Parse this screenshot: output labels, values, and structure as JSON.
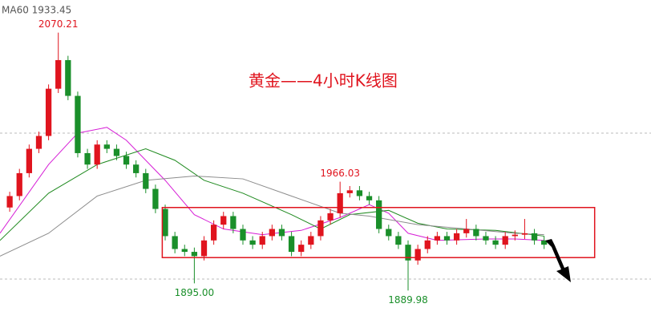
{
  "chart_data": {
    "type": "candlestick",
    "title": "黄金——4小时K线图",
    "indicator_text": "MA60 1933.45",
    "xlim": [
      -1,
      66
    ],
    "ylim": [
      1861,
      2093
    ],
    "up_color": "#e0141e",
    "down_color": "#1a8f2a",
    "grid_levels": [
      2000,
      1898
    ],
    "opens": [
      1948,
      1956,
      1972,
      1989,
      1998,
      2031,
      2051,
      2026,
      1986,
      1978,
      1992,
      1989,
      1984,
      1978,
      1972,
      1961,
      1947,
      1928,
      1919,
      1917,
      1914,
      1925,
      1936,
      1942,
      1933,
      1925,
      1922,
      1928,
      1933,
      1928,
      1917,
      1922,
      1928,
      1939,
      1944,
      1958,
      1960,
      1956,
      1953,
      1933,
      1928,
      1922,
      1911,
      1919,
      1925,
      1928,
      1925,
      1930,
      1933,
      1928,
      1925,
      1922,
      1928,
      1929,
      1930,
      1925
    ],
    "closes": [
      1956,
      1972,
      1989,
      1998,
      2031,
      2051,
      2026,
      1986,
      1978,
      1992,
      1989,
      1984,
      1978,
      1972,
      1961,
      1947,
      1928,
      1919,
      1917,
      1914,
      1925,
      1936,
      1942,
      1933,
      1925,
      1922,
      1928,
      1933,
      1928,
      1917,
      1922,
      1928,
      1939,
      1944,
      1958,
      1960,
      1956,
      1953,
      1933,
      1928,
      1922,
      1911,
      1919,
      1925,
      1928,
      1925,
      1930,
      1933,
      1928,
      1925,
      1922,
      1928,
      1929,
      1930,
      1925,
      1922
    ],
    "highs": [
      1959,
      1975,
      1992,
      2001,
      2034,
      2070.21,
      2054,
      2029,
      1989,
      1995,
      1995,
      1992,
      1987,
      1981,
      1975,
      1964,
      1950,
      1931,
      1922,
      1920,
      1928,
      1939,
      1945,
      1945,
      1936,
      1928,
      1931,
      1936,
      1936,
      1931,
      1925,
      1931,
      1942,
      1947,
      1966.03,
      1963,
      1963,
      1959,
      1956,
      1936,
      1931,
      1925,
      1922,
      1928,
      1931,
      1931,
      1933,
      1940,
      1936,
      1931,
      1928,
      1931,
      1932,
      1940,
      1933,
      1928
    ],
    "lows": [
      1945,
      1953,
      1969,
      1986,
      1995,
      2028,
      2023,
      1983,
      1975,
      1975,
      1986,
      1981,
      1975,
      1969,
      1958,
      1944,
      1925,
      1916,
      1914,
      1895,
      1911,
      1922,
      1933,
      1930,
      1922,
      1919,
      1919,
      1925,
      1925,
      1914,
      1914,
      1919,
      1925,
      1936,
      1941,
      1955,
      1953,
      1950,
      1930,
      1925,
      1919,
      1889.98,
      1908,
      1916,
      1922,
      1922,
      1922,
      1927,
      1925,
      1922,
      1919,
      1919,
      1925,
      1926,
      1922,
      1919
    ],
    "high_value_labels": [
      null,
      null,
      null,
      null,
      null,
      "2070.21",
      null,
      null,
      null,
      null,
      null,
      null,
      null,
      null,
      null,
      null,
      null,
      null,
      null,
      null,
      null,
      null,
      null,
      null,
      null,
      null,
      null,
      null,
      null,
      null,
      null,
      null,
      null,
      null,
      "1966.03",
      null,
      null,
      null,
      null,
      null,
      null,
      null,
      null,
      null,
      null,
      null,
      null,
      null,
      null,
      null,
      null,
      null,
      null,
      null,
      null,
      null
    ],
    "low_value_labels": [
      null,
      null,
      null,
      null,
      null,
      null,
      null,
      null,
      null,
      null,
      null,
      null,
      null,
      null,
      null,
      null,
      null,
      null,
      null,
      "1895.00",
      null,
      null,
      null,
      null,
      null,
      null,
      null,
      null,
      null,
      null,
      null,
      null,
      null,
      null,
      null,
      null,
      null,
      null,
      null,
      null,
      null,
      "1889.98",
      null,
      null,
      null,
      null,
      null,
      null,
      null,
      null,
      null,
      null,
      null,
      null,
      null,
      null
    ],
    "lines": [
      {
        "color": "#d61ed6",
        "x": [
          -1,
          4,
          7,
          10,
          12,
          16,
          19,
          22,
          26,
          30,
          34,
          37,
          39,
          41,
          44,
          49,
          52,
          55
        ],
        "values": [
          1930,
          1978,
          2000,
          2004,
          1995,
          1967,
          1943,
          1933,
          1929,
          1932,
          1941,
          1950,
          1944,
          1930,
          1925,
          1926,
          1926,
          1925
        ]
      },
      {
        "color": "#1f8a1f",
        "x": [
          -1,
          4,
          9,
          14,
          17,
          20,
          24,
          29,
          32,
          35,
          39,
          42,
          45,
          50,
          55
        ],
        "values": [
          1925,
          1958,
          1978,
          1989,
          1981,
          1967,
          1958,
          1943,
          1933,
          1943,
          1946,
          1937,
          1933,
          1932,
          1928
        ]
      },
      {
        "color": "#8c8c8c",
        "x": [
          -1,
          4,
          9,
          14,
          19,
          24,
          29,
          34,
          37,
          42,
          47,
          52,
          55
        ],
        "values": [
          1914,
          1930,
          1956,
          1967,
          1970,
          1968,
          1956,
          1944,
          1942,
          1936,
          1933,
          1930,
          1929
        ]
      }
    ],
    "range_box": {
      "x": [
        15.7,
        60.2
      ],
      "y": [
        1913,
        1948
      ],
      "color": "#e0141e"
    }
  }
}
